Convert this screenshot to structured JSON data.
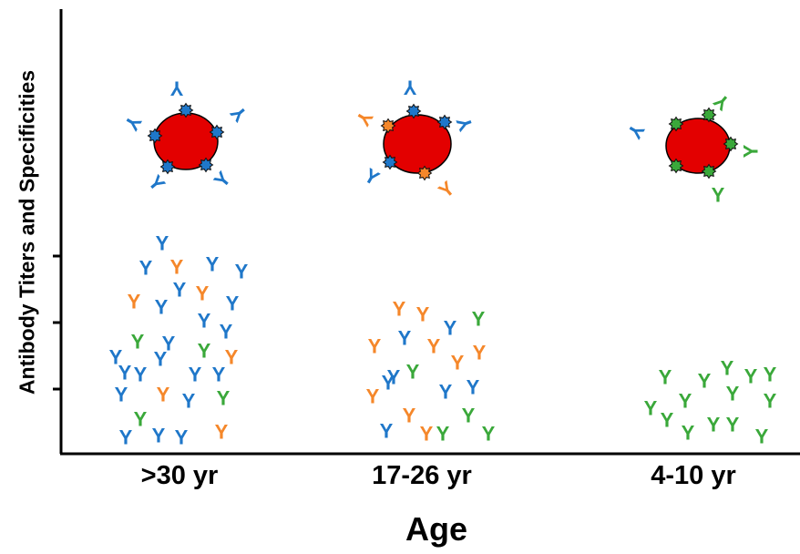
{
  "x_axis_title": "Age",
  "y_axis_title": "Antibody Titers and Specificities",
  "antibody_glyph": "Y",
  "colors": {
    "blue": "#1f77c9",
    "orange": "#f5872a",
    "green": "#3aa83a",
    "pathogen": "#e30000"
  },
  "groups": [
    {
      "label": ">30 yr",
      "pathogen_epitopes": [
        "blue",
        "blue",
        "blue",
        "blue",
        "blue"
      ],
      "bound_antibodies": [
        "blue",
        "blue",
        "blue",
        "blue",
        "blue"
      ],
      "free_antibodies": {
        "blue": 26,
        "orange": 7,
        "green": 4
      }
    },
    {
      "label": "17-26 yr",
      "pathogen_epitopes": [
        "blue",
        "blue",
        "orange",
        "blue",
        "orange"
      ],
      "bound_antibodies": [
        "blue",
        "blue",
        "orange",
        "blue",
        "orange"
      ],
      "free_antibodies": {
        "blue": 8,
        "orange": 12,
        "green": 6
      }
    },
    {
      "label": "4-10 yr",
      "pathogen_epitopes": [
        "green",
        "green",
        "green",
        "green",
        "green"
      ],
      "bound_antibodies": [
        "blue",
        "green",
        "green",
        "green"
      ],
      "free_antibodies": {
        "blue": 0,
        "orange": 0,
        "green": 18
      }
    }
  ]
}
